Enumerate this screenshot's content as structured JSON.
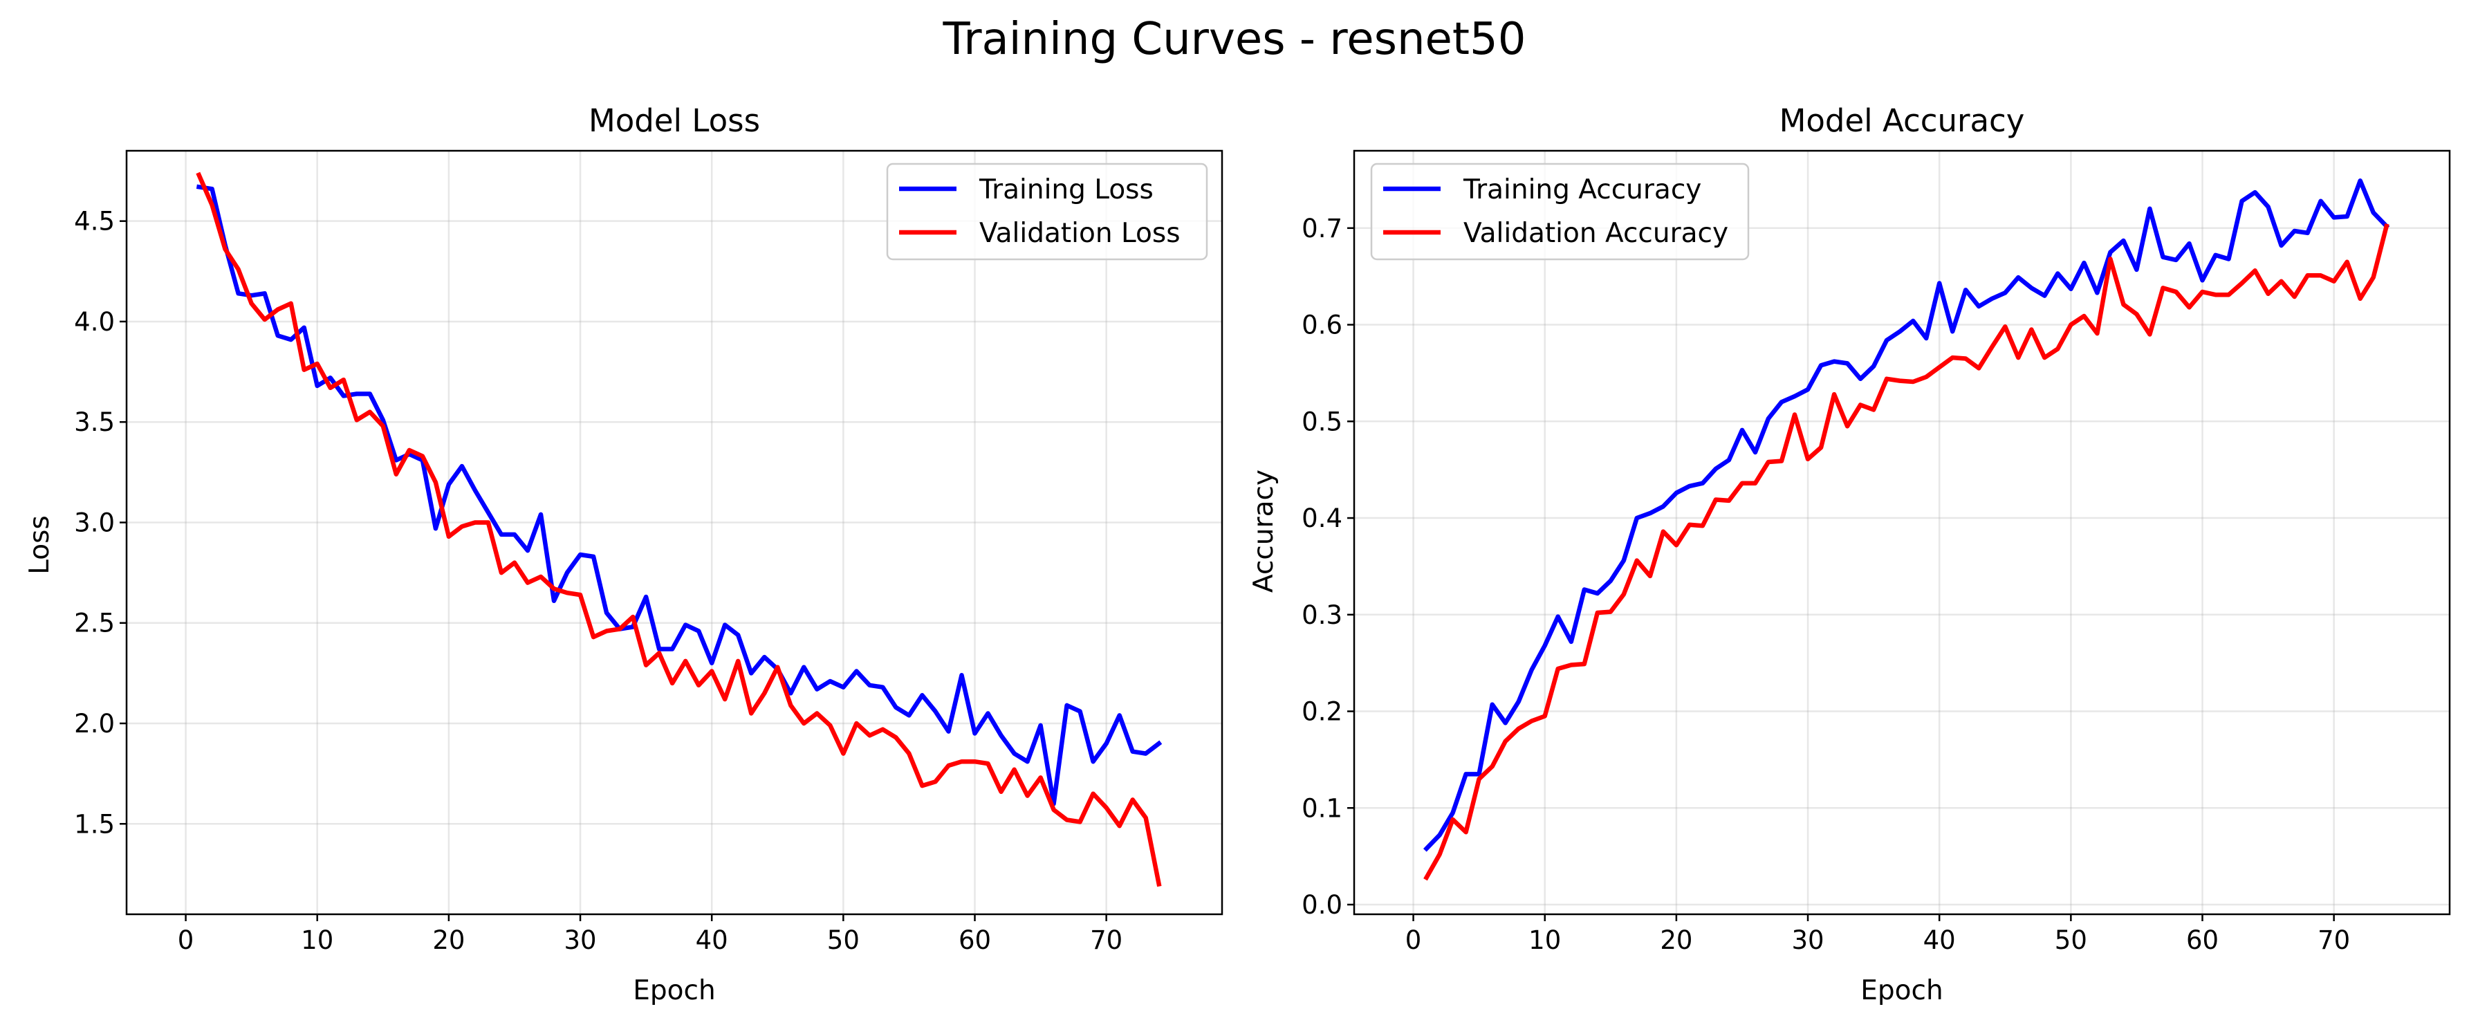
{
  "page": {
    "suptitle": "Training Curves - resnet50"
  },
  "chart_data": [
    {
      "type": "line",
      "title": "Model Loss",
      "xlabel": "Epoch",
      "ylabel": "Loss",
      "xlim": [
        -4.5,
        78.8
      ],
      "ylim": [
        1.05,
        4.85
      ],
      "xticks": [
        0,
        10,
        20,
        30,
        40,
        50,
        60,
        70
      ],
      "yticks": [
        1.5,
        2.0,
        2.5,
        3.0,
        3.5,
        4.0,
        4.5
      ],
      "ytick_format": 1,
      "grid": true,
      "legend": "upper right",
      "series": [
        {
          "name": "Training Loss",
          "color": "#0000ff",
          "x": [
            1,
            2,
            3,
            4,
            5,
            6,
            7,
            8,
            9,
            10,
            11,
            12,
            13,
            14,
            15,
            16,
            17,
            18,
            19,
            20,
            21,
            22,
            23,
            24,
            25,
            26,
            27,
            28,
            29,
            30,
            31,
            32,
            33,
            34,
            35,
            36,
            37,
            38,
            39,
            40,
            41,
            42,
            43,
            44,
            45,
            46,
            47,
            48,
            49,
            50,
            51,
            52,
            53,
            54,
            55,
            56,
            57,
            58,
            59,
            60,
            61,
            62,
            63,
            64,
            65,
            66,
            67,
            68,
            69,
            70,
            71,
            72,
            73,
            74
          ],
          "y": [
            4.67,
            4.66,
            4.38,
            4.14,
            4.13,
            4.14,
            3.93,
            3.91,
            3.97,
            3.68,
            3.72,
            3.63,
            3.64,
            3.64,
            3.51,
            3.31,
            3.34,
            3.31,
            2.97,
            3.19,
            3.28,
            3.16,
            3.05,
            2.94,
            2.94,
            2.86,
            3.04,
            2.61,
            2.75,
            2.84,
            2.83,
            2.55,
            2.47,
            2.48,
            2.63,
            2.37,
            2.37,
            2.49,
            2.46,
            2.3,
            2.49,
            2.44,
            2.25,
            2.33,
            2.27,
            2.15,
            2.28,
            2.17,
            2.21,
            2.18,
            2.26,
            2.19,
            2.18,
            2.08,
            2.04,
            2.14,
            2.06,
            1.96,
            2.24,
            1.95,
            2.05,
            1.94,
            1.85,
            1.81,
            1.99,
            1.6,
            2.09,
            2.06,
            1.81,
            1.9,
            2.04,
            1.86,
            1.85,
            1.9
          ]
        },
        {
          "name": "Validation Loss",
          "color": "#ff0000",
          "x": [
            1,
            2,
            3,
            4,
            5,
            6,
            7,
            8,
            9,
            10,
            11,
            12,
            13,
            14,
            15,
            16,
            17,
            18,
            19,
            20,
            21,
            22,
            23,
            24,
            25,
            26,
            27,
            28,
            29,
            30,
            31,
            32,
            33,
            34,
            35,
            36,
            37,
            38,
            39,
            40,
            41,
            42,
            43,
            44,
            45,
            46,
            47,
            48,
            49,
            50,
            51,
            52,
            53,
            54,
            55,
            56,
            57,
            58,
            59,
            60,
            61,
            62,
            63,
            64,
            65,
            66,
            67,
            68,
            69,
            70,
            71,
            72,
            73,
            74
          ],
          "y": [
            4.73,
            4.58,
            4.36,
            4.26,
            4.09,
            4.01,
            4.06,
            4.09,
            3.76,
            3.79,
            3.67,
            3.71,
            3.51,
            3.55,
            3.48,
            3.24,
            3.36,
            3.33,
            3.2,
            2.93,
            2.98,
            3.0,
            3.0,
            2.75,
            2.8,
            2.7,
            2.73,
            2.67,
            2.65,
            2.64,
            2.43,
            2.46,
            2.47,
            2.53,
            2.29,
            2.35,
            2.2,
            2.31,
            2.19,
            2.26,
            2.12,
            2.31,
            2.05,
            2.15,
            2.28,
            2.09,
            2.0,
            2.05,
            1.99,
            1.85,
            2.0,
            1.94,
            1.97,
            1.93,
            1.85,
            1.69,
            1.71,
            1.79,
            1.81,
            1.81,
            1.8,
            1.66,
            1.77,
            1.64,
            1.73,
            1.57,
            1.52,
            1.51,
            1.65,
            1.58,
            1.49,
            1.62,
            1.53,
            1.2
          ]
        }
      ]
    },
    {
      "type": "line",
      "title": "Model Accuracy",
      "xlabel": "Epoch",
      "ylabel": "Accuracy",
      "xlim": [
        -4.5,
        78.8
      ],
      "ylim": [
        -0.01,
        0.78
      ],
      "xticks": [
        0,
        10,
        20,
        30,
        40,
        50,
        60,
        70
      ],
      "yticks": [
        0.0,
        0.1,
        0.2,
        0.3,
        0.4,
        0.5,
        0.6,
        0.7
      ],
      "ytick_format": 1,
      "grid": true,
      "legend": "upper left",
      "series": [
        {
          "name": "Training Accuracy",
          "color": "#0000ff",
          "x": [
            1,
            2,
            3,
            4,
            5,
            6,
            7,
            8,
            9,
            10,
            11,
            12,
            13,
            14,
            15,
            16,
            17,
            18,
            19,
            20,
            21,
            22,
            23,
            24,
            25,
            26,
            27,
            28,
            29,
            30,
            31,
            32,
            33,
            34,
            35,
            36,
            37,
            38,
            39,
            40,
            41,
            42,
            43,
            44,
            45,
            46,
            47,
            48,
            49,
            50,
            51,
            52,
            53,
            54,
            55,
            56,
            57,
            58,
            59,
            60,
            61,
            62,
            63,
            64,
            65,
            66,
            67,
            68,
            69,
            70,
            71,
            72,
            73,
            74
          ],
          "y": [
            0.058,
            0.072,
            0.095,
            0.135,
            0.135,
            0.207,
            0.188,
            0.21,
            0.243,
            0.268,
            0.298,
            0.272,
            0.326,
            0.322,
            0.335,
            0.356,
            0.4,
            0.405,
            0.412,
            0.426,
            0.433,
            0.436,
            0.451,
            0.46,
            0.491,
            0.468,
            0.503,
            0.52,
            0.526,
            0.533,
            0.558,
            0.562,
            0.56,
            0.544,
            0.557,
            0.584,
            0.593,
            0.604,
            0.586,
            0.643,
            0.593,
            0.636,
            0.619,
            0.627,
            0.633,
            0.649,
            0.638,
            0.63,
            0.653,
            0.637,
            0.664,
            0.633,
            0.675,
            0.687,
            0.657,
            0.72,
            0.67,
            0.667,
            0.684,
            0.646,
            0.672,
            0.668,
            0.728,
            0.737,
            0.722,
            0.682,
            0.697,
            0.695,
            0.728,
            0.711,
            0.712,
            0.749,
            0.716,
            0.702
          ]
        },
        {
          "name": "Validation Accuracy",
          "color": "#ff0000",
          "x": [
            1,
            2,
            3,
            4,
            5,
            6,
            7,
            8,
            9,
            10,
            11,
            12,
            13,
            14,
            15,
            16,
            17,
            18,
            19,
            20,
            21,
            22,
            23,
            24,
            25,
            26,
            27,
            28,
            29,
            30,
            31,
            32,
            33,
            34,
            35,
            36,
            37,
            38,
            39,
            40,
            41,
            42,
            43,
            44,
            45,
            46,
            47,
            48,
            49,
            50,
            51,
            52,
            53,
            54,
            55,
            56,
            57,
            58,
            59,
            60,
            61,
            62,
            63,
            64,
            65,
            66,
            67,
            68,
            69,
            70,
            71,
            72,
            73,
            74
          ],
          "y": [
            0.028,
            0.052,
            0.088,
            0.075,
            0.13,
            0.143,
            0.169,
            0.182,
            0.19,
            0.195,
            0.244,
            0.248,
            0.249,
            0.302,
            0.303,
            0.321,
            0.356,
            0.34,
            0.386,
            0.372,
            0.393,
            0.392,
            0.419,
            0.418,
            0.436,
            0.436,
            0.458,
            0.459,
            0.507,
            0.461,
            0.473,
            0.528,
            0.495,
            0.517,
            0.512,
            0.544,
            0.542,
            0.541,
            0.546,
            0.556,
            0.566,
            0.565,
            0.555,
            0.577,
            0.598,
            0.566,
            0.595,
            0.566,
            0.575,
            0.6,
            0.609,
            0.591,
            0.668,
            0.621,
            0.611,
            0.59,
            0.638,
            0.634,
            0.618,
            0.634,
            0.631,
            0.631,
            0.643,
            0.656,
            0.632,
            0.645,
            0.629,
            0.651,
            0.651,
            0.645,
            0.665,
            0.627,
            0.649,
            0.702
          ]
        }
      ]
    }
  ]
}
